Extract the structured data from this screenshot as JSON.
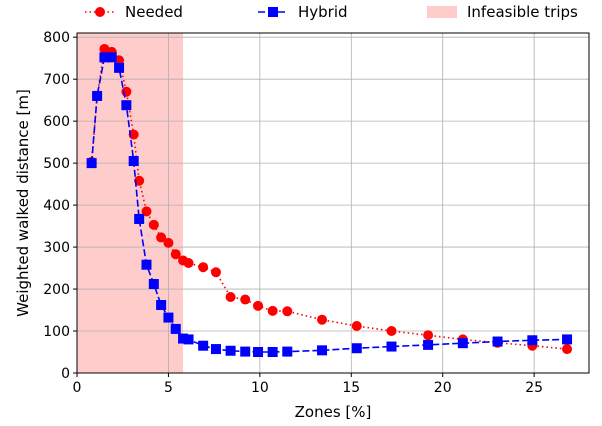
{
  "chart_data": {
    "type": "line",
    "xlabel": "Zones [%]",
    "ylabel": "Weighted walked distance [m]",
    "xlim": [
      0,
      28
    ],
    "ylim": [
      0,
      810
    ],
    "xticks": [
      0,
      5,
      10,
      15,
      20,
      25
    ],
    "yticks": [
      0,
      100,
      200,
      300,
      400,
      500,
      600,
      700,
      800
    ],
    "grid": true,
    "legend_placement": "top, outside plot",
    "shaded_regions": [
      {
        "name": "Infeasible trips",
        "x_start": 0,
        "x_end": 5.8,
        "color": "#ffcccc"
      }
    ],
    "series": [
      {
        "name": "Needed",
        "color": "#ff0000",
        "linestyle": "dotted",
        "marker": "circle",
        "x": [
          0.8,
          1.1,
          1.5,
          1.9,
          2.3,
          2.7,
          3.1,
          3.4,
          3.8,
          4.2,
          4.6,
          5.0,
          5.4,
          5.8,
          6.1,
          6.9,
          7.6,
          8.4,
          9.2,
          9.9,
          10.7,
          11.5,
          13.4,
          15.3,
          17.2,
          19.2,
          21.1,
          23.0,
          24.9,
          26.8
        ],
        "y": [
          503,
          660,
          772,
          765,
          745,
          670,
          568,
          458,
          385,
          353,
          323,
          310,
          283,
          268,
          262,
          252,
          240,
          181,
          175,
          160,
          148,
          147,
          127,
          112,
          100,
          90,
          80,
          72,
          65,
          57
        ]
      },
      {
        "name": "Hybrid",
        "color": "#0000ff",
        "linestyle": "dashed",
        "marker": "square",
        "x": [
          0.8,
          1.1,
          1.5,
          1.9,
          2.3,
          2.7,
          3.1,
          3.4,
          3.8,
          4.2,
          4.6,
          5.0,
          5.4,
          5.8,
          6.1,
          6.9,
          7.6,
          8.4,
          9.2,
          9.9,
          10.7,
          11.5,
          13.4,
          15.3,
          17.2,
          19.2,
          21.1,
          23.0,
          24.9,
          26.8
        ],
        "y": [
          500,
          660,
          752,
          752,
          727,
          638,
          505,
          367,
          258,
          212,
          162,
          132,
          105,
          82,
          80,
          65,
          57,
          53,
          51,
          50,
          50,
          51,
          54,
          59,
          63,
          67,
          71,
          75,
          78,
          80
        ]
      }
    ]
  }
}
